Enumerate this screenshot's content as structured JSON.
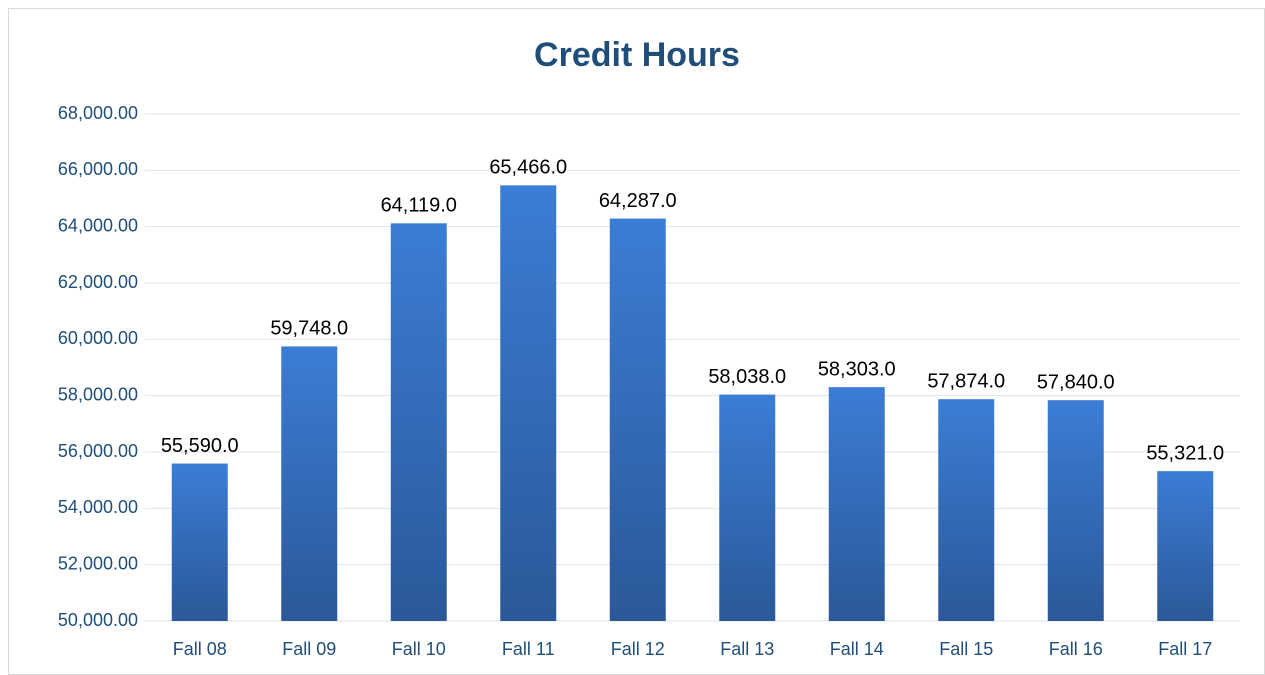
{
  "chart_data": {
    "type": "bar",
    "title": "Credit Hours",
    "categories": [
      "Fall 08",
      "Fall 09",
      "Fall 10",
      "Fall 11",
      "Fall 12",
      "Fall 13",
      "Fall 14",
      "Fall 15",
      "Fall 16",
      "Fall 17"
    ],
    "values": [
      55590,
      59748,
      64119,
      65466,
      64287,
      58038,
      58303,
      57874,
      57840,
      55321
    ],
    "value_labels": [
      "55,590.0",
      "59,748.0",
      "64,119.0",
      "65,466.0",
      "64,287.0",
      "58,038.0",
      "58,303.0",
      "57,874.0",
      "57,840.0",
      "55,321.0"
    ],
    "color": "#3b7dd6",
    "ylim": [
      50000,
      68000
    ],
    "yticks": [
      {
        "value": 50000,
        "label": "50,000.00"
      },
      {
        "value": 52000,
        "label": "52,000.00"
      },
      {
        "value": 54000,
        "label": "54,000.00"
      },
      {
        "value": 56000,
        "label": "56,000.00"
      },
      {
        "value": 58000,
        "label": "58,000.00"
      },
      {
        "value": 60000,
        "label": "60,000.00"
      },
      {
        "value": 62000,
        "label": "62,000.00"
      },
      {
        "value": 64000,
        "label": "64,000.00"
      },
      {
        "value": 66000,
        "label": "66,000.00"
      },
      {
        "value": 68000,
        "label": "68,000.00"
      }
    ],
    "grid": true
  }
}
